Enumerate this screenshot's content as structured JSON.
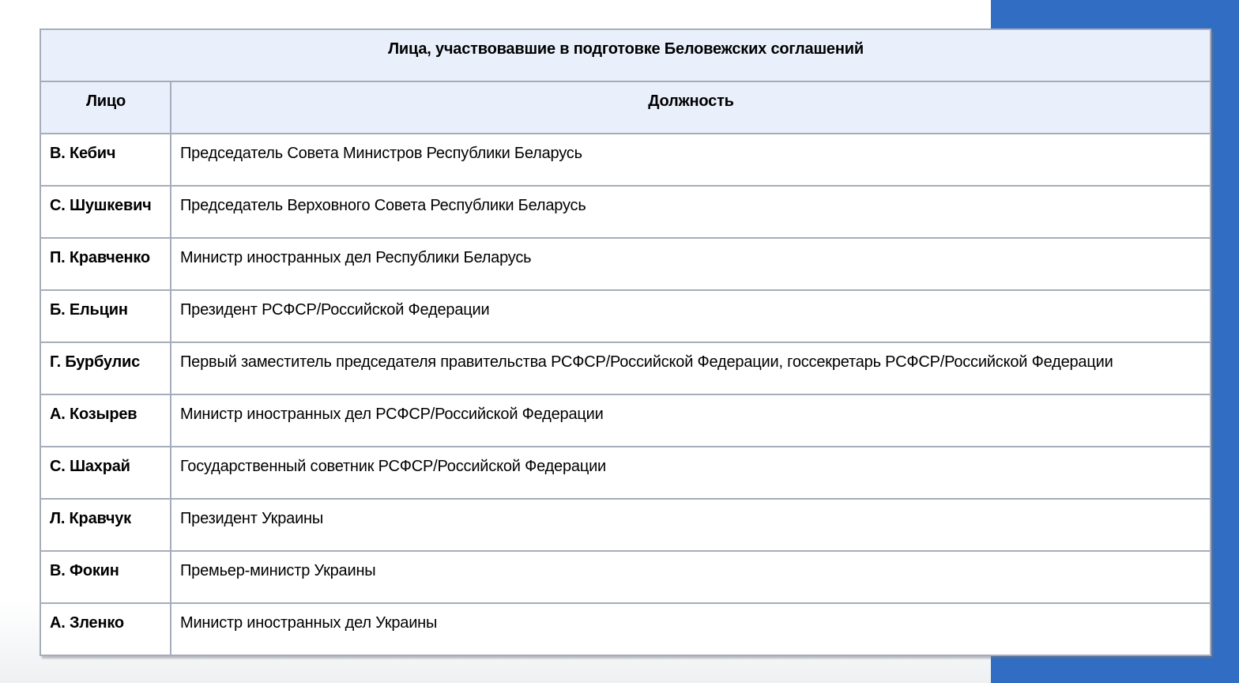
{
  "page": {
    "accent_color": "#316dc2",
    "table_header_bg": "#eaf0fb",
    "table_border_color": "#a6adba",
    "text_color": "#000000"
  },
  "table": {
    "title": "Лица, участвовавшие в подготовке Беловежских соглашений",
    "columns": {
      "person": "Лицо",
      "position": "Должность"
    },
    "rows": [
      {
        "person": "В. Кебич",
        "position": "Председатель Совета Министров Республики Беларусь"
      },
      {
        "person": "С. Шушкевич",
        "position": "Председатель Верховного Совета Республики Беларусь"
      },
      {
        "person": "П. Кравченко",
        "position": "Министр иностранных дел Республики Беларусь"
      },
      {
        "person": "Б. Ельцин",
        "position": "Президент РСФСР/Российской Федерации"
      },
      {
        "person": "Г. Бурбулис",
        "position": "Первый заместитель председателя правительства РСФСР/Российской Федерации, госсекретарь РСФСР/Российской Федерации"
      },
      {
        "person": "А. Козырев",
        "position": "Министр иностранных дел РСФСР/Российской Федерации"
      },
      {
        "person": "С. Шахрай",
        "position": "Государственный советник РСФСР/Российской Федерации"
      },
      {
        "person": "Л. Кравчук",
        "position": "Президент Украины"
      },
      {
        "person": "В. Фокин",
        "position": "Премьер-министр Украины"
      },
      {
        "person": "А. Зленко",
        "position": "Министр иностранных дел Украины"
      }
    ]
  }
}
